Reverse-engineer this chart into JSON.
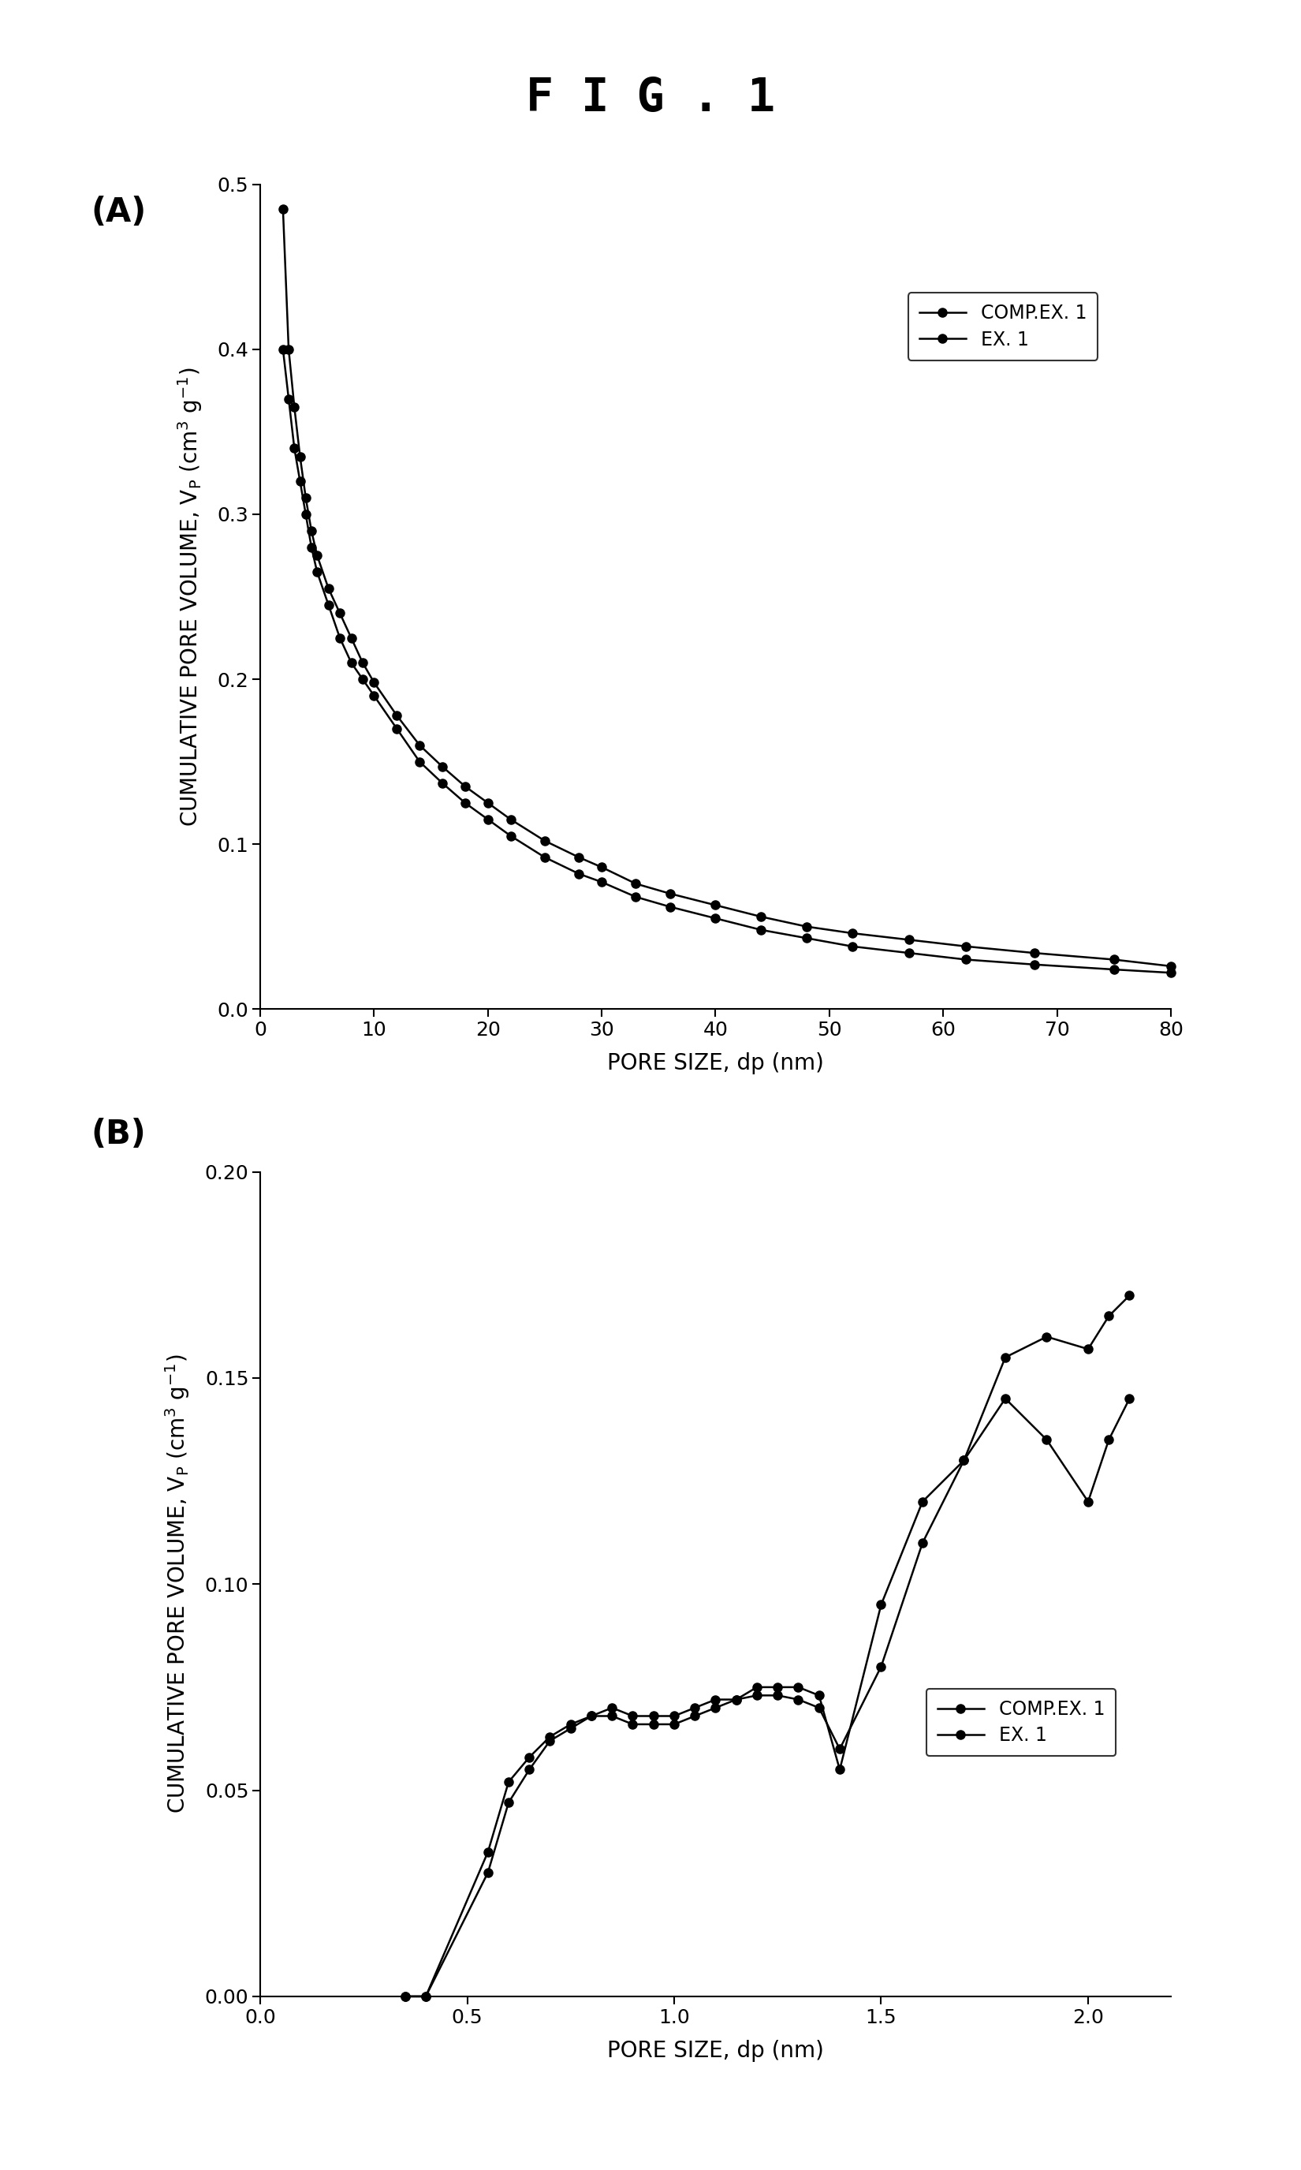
{
  "title": "F I G . 1",
  "title_fontsize": 42,
  "panel_label_fontsize": 30,
  "axis_label_fontsize": 20,
  "tick_label_fontsize": 18,
  "legend_fontsize": 17,
  "panel_A": {
    "label": "(A)",
    "xlabel": "PORE SIZE, dp (nm)",
    "xlim": [
      0,
      80
    ],
    "ylim": [
      0,
      0.5
    ],
    "xticks": [
      0,
      10,
      20,
      30,
      40,
      50,
      60,
      70,
      80
    ],
    "yticks": [
      0,
      0.1,
      0.2,
      0.3,
      0.4,
      0.5
    ],
    "comp_ex1_x": [
      2,
      2.5,
      3,
      3.5,
      4,
      4.5,
      5,
      6,
      7,
      8,
      9,
      10,
      12,
      14,
      16,
      18,
      20,
      22,
      25,
      28,
      30,
      33,
      36,
      40,
      44,
      48,
      52,
      57,
      62,
      68,
      75,
      80
    ],
    "comp_ex1_y": [
      0.4,
      0.37,
      0.34,
      0.32,
      0.3,
      0.28,
      0.265,
      0.245,
      0.225,
      0.21,
      0.2,
      0.19,
      0.17,
      0.15,
      0.137,
      0.125,
      0.115,
      0.105,
      0.092,
      0.082,
      0.077,
      0.068,
      0.062,
      0.055,
      0.048,
      0.043,
      0.038,
      0.034,
      0.03,
      0.027,
      0.024,
      0.022
    ],
    "ex1_x": [
      2,
      2.5,
      3,
      3.5,
      4,
      4.5,
      5,
      6,
      7,
      8,
      9,
      10,
      12,
      14,
      16,
      18,
      20,
      22,
      25,
      28,
      30,
      33,
      36,
      40,
      44,
      48,
      52,
      57,
      62,
      68,
      75,
      80
    ],
    "ex1_y": [
      0.485,
      0.4,
      0.365,
      0.335,
      0.31,
      0.29,
      0.275,
      0.255,
      0.24,
      0.225,
      0.21,
      0.198,
      0.178,
      0.16,
      0.147,
      0.135,
      0.125,
      0.115,
      0.102,
      0.092,
      0.086,
      0.076,
      0.07,
      0.063,
      0.056,
      0.05,
      0.046,
      0.042,
      0.038,
      0.034,
      0.03,
      0.026
    ],
    "legend_labels": [
      "COMP.EX. 1",
      "EX. 1"
    ]
  },
  "panel_B": {
    "label": "(B)",
    "xlabel": "PORE SIZE, dp (nm)",
    "xlim": [
      0,
      2.2
    ],
    "ylim": [
      0,
      0.2
    ],
    "xticks": [
      0,
      0.5,
      1.0,
      1.5,
      2.0
    ],
    "yticks": [
      0,
      0.05,
      0.1,
      0.15,
      0.2
    ],
    "comp_ex1_x": [
      0.35,
      0.4,
      0.55,
      0.6,
      0.65,
      0.7,
      0.75,
      0.8,
      0.85,
      0.9,
      0.95,
      1.0,
      1.05,
      1.1,
      1.15,
      1.2,
      1.25,
      1.3,
      1.35,
      1.4,
      1.5,
      1.6,
      1.7,
      1.8,
      1.9,
      2.0,
      2.05,
      2.1
    ],
    "comp_ex1_y": [
      0.0,
      0.0,
      0.03,
      0.047,
      0.055,
      0.062,
      0.065,
      0.068,
      0.07,
      0.068,
      0.068,
      0.068,
      0.07,
      0.072,
      0.072,
      0.073,
      0.073,
      0.072,
      0.07,
      0.06,
      0.08,
      0.11,
      0.13,
      0.155,
      0.16,
      0.157,
      0.165,
      0.17
    ],
    "ex1_x": [
      0.35,
      0.4,
      0.55,
      0.6,
      0.65,
      0.7,
      0.75,
      0.8,
      0.85,
      0.9,
      0.95,
      1.0,
      1.05,
      1.1,
      1.15,
      1.2,
      1.25,
      1.3,
      1.35,
      1.4,
      1.5,
      1.6,
      1.7,
      1.8,
      1.9,
      2.0,
      2.05,
      2.1
    ],
    "ex1_y": [
      0.0,
      0.0,
      0.035,
      0.052,
      0.058,
      0.063,
      0.066,
      0.068,
      0.068,
      0.066,
      0.066,
      0.066,
      0.068,
      0.07,
      0.072,
      0.075,
      0.075,
      0.075,
      0.073,
      0.055,
      0.095,
      0.12,
      0.13,
      0.145,
      0.135,
      0.12,
      0.135,
      0.145
    ],
    "legend_labels": [
      "COMP.EX. 1",
      "EX. 1"
    ]
  },
  "figure_bg": "#ffffff",
  "axes_bg": "#ffffff",
  "line_color": "#000000",
  "marker": "o",
  "markersize": 8,
  "linewidth": 1.8
}
